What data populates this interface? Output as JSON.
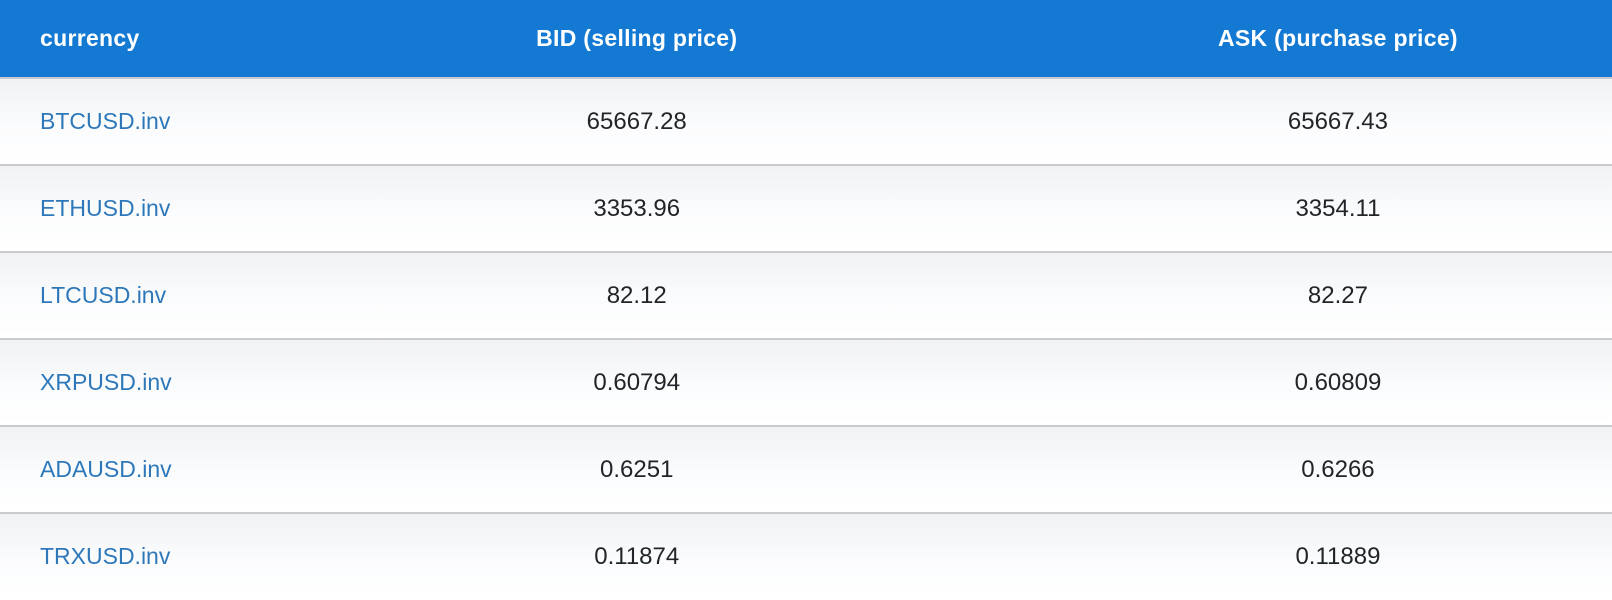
{
  "table": {
    "columns": [
      {
        "key": "currency",
        "label": "currency"
      },
      {
        "key": "bid",
        "label": "BID (selling price)"
      },
      {
        "key": "ask",
        "label": "ASK (purchase price)"
      }
    ],
    "rows": [
      {
        "currency": "BTCUSD.inv",
        "bid": "65667.28",
        "ask": "65667.43"
      },
      {
        "currency": "ETHUSD.inv",
        "bid": "3353.96",
        "ask": "3354.11"
      },
      {
        "currency": "LTCUSD.inv",
        "bid": "82.12",
        "ask": "82.27"
      },
      {
        "currency": "XRPUSD.inv",
        "bid": "0.60794",
        "ask": "0.60809"
      },
      {
        "currency": "ADAUSD.inv",
        "bid": "0.6251",
        "ask": "0.6266"
      },
      {
        "currency": "TRXUSD.inv",
        "bid": "0.11874",
        "ask": "0.11889"
      }
    ]
  },
  "colors": {
    "header_bg": "#1379d2",
    "header_text": "#ffffff",
    "currency_link": "#2e78ba",
    "price_text": "#212529",
    "row_divider": "#c9cbce",
    "row_gradient_top": "#f1f2f4",
    "row_gradient_bottom": "#ffffff"
  }
}
